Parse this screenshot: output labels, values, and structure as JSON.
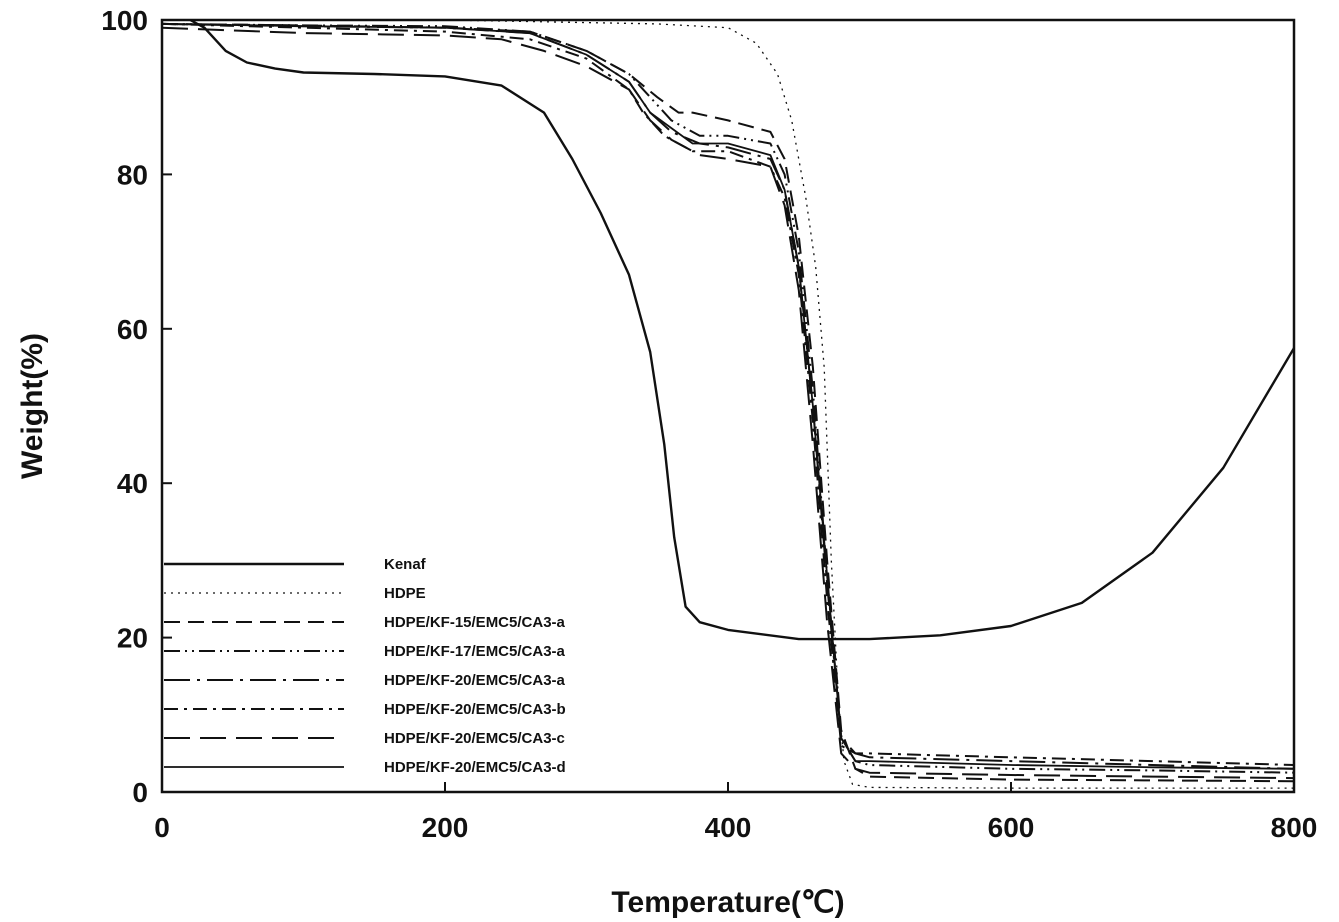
{
  "chart_data": {
    "type": "line",
    "xlabel": "Temperature(℃)",
    "ylabel": "Weight(%)",
    "xlim": [
      0,
      800
    ],
    "ylim": [
      0,
      100
    ],
    "xticks": [
      "0",
      "200",
      "400",
      "600",
      "800"
    ],
    "yticks": [
      "0",
      "20",
      "40",
      "60",
      "80",
      "100"
    ],
    "grid": false,
    "legend_position": "bottom-left",
    "series": [
      {
        "name": "Kenaf",
        "style": "solid",
        "x": [
          20,
          30,
          45,
          60,
          80,
          100,
          150,
          200,
          240,
          270,
          290,
          310,
          330,
          345,
          355,
          362,
          370,
          380,
          400,
          450,
          500,
          550,
          600,
          650,
          700,
          750,
          800
        ],
        "y": [
          100,
          99,
          96,
          94.5,
          93.7,
          93.2,
          93,
          92.7,
          91.5,
          88,
          82,
          75,
          67,
          57,
          45,
          33,
          24,
          22,
          21,
          19.8,
          19.8,
          20.3,
          21.5,
          24.5,
          31,
          42,
          57.5
        ]
      },
      {
        "name": "HDPE",
        "style": "dotted",
        "x": [
          0,
          200,
          350,
          400,
          420,
          435,
          445,
          455,
          462,
          468,
          473,
          478,
          482,
          488,
          500,
          600,
          700,
          800
        ],
        "y": [
          100,
          100,
          99.5,
          99,
          97,
          93,
          87,
          77,
          68,
          55,
          30,
          12,
          4,
          1,
          0.6,
          0.5,
          0.5,
          0.5
        ]
      },
      {
        "name": "HDPE/KF-15/EMC5/CA3-a",
        "style": "dash",
        "x": [
          0,
          100,
          200,
          260,
          300,
          330,
          350,
          365,
          375,
          400,
          430,
          440,
          450,
          460,
          470,
          480,
          490,
          500,
          600,
          700,
          800
        ],
        "y": [
          99.5,
          99.3,
          99,
          98.5,
          96,
          93,
          90,
          88,
          88,
          87,
          85.5,
          82,
          72,
          55,
          30,
          8,
          3,
          2,
          1.6,
          1.5,
          1.4
        ]
      },
      {
        "name": "HDPE/KF-17/EMC5/CA3-a",
        "style": "dash-dot-dot",
        "x": [
          0,
          100,
          200,
          260,
          300,
          330,
          345,
          360,
          380,
          400,
          430,
          440,
          450,
          460,
          470,
          480,
          490,
          500,
          600,
          700,
          800
        ],
        "y": [
          99.5,
          99.3,
          99.2,
          98.5,
          96,
          93,
          90,
          87,
          85,
          85,
          84,
          80,
          70,
          52,
          28,
          7,
          4,
          3.5,
          3,
          2.8,
          2.5
        ]
      },
      {
        "name": "HDPE/KF-20/EMC5/CA3-a",
        "style": "long-dash-dot",
        "x": [
          0,
          100,
          200,
          260,
          300,
          330,
          345,
          360,
          380,
          400,
          430,
          440,
          450,
          460,
          470,
          480,
          490,
          500,
          600,
          700,
          800
        ],
        "y": [
          99.5,
          99.2,
          99,
          98.3,
          95.5,
          92,
          88,
          85.5,
          84,
          83.5,
          82,
          78,
          68,
          50,
          27,
          7,
          5,
          4.5,
          4,
          3.5,
          3
        ]
      },
      {
        "name": "HDPE/KF-20/EMC5/CA3-b",
        "style": "dash-dot",
        "x": [
          0,
          100,
          200,
          260,
          300,
          330,
          340,
          355,
          375,
          400,
          430,
          440,
          450,
          460,
          470,
          480,
          490,
          500,
          600,
          700,
          800
        ],
        "y": [
          99.5,
          99,
          98.5,
          97.5,
          95,
          91,
          88,
          85,
          83,
          83,
          81,
          77,
          67,
          48,
          25,
          6,
          5,
          5,
          4.5,
          4,
          3.5
        ]
      },
      {
        "name": "HDPE/KF-20/EMC5/CA3-c",
        "style": "long-dash",
        "x": [
          0,
          100,
          200,
          240,
          270,
          300,
          330,
          345,
          360,
          380,
          400,
          430,
          440,
          450,
          460,
          470,
          480,
          490,
          500,
          600,
          700,
          800
        ],
        "y": [
          99,
          98.3,
          98,
          97.5,
          96,
          94,
          91,
          87,
          84.5,
          82.5,
          82,
          81,
          76,
          65,
          45,
          22,
          5,
          3,
          2.5,
          2.2,
          2,
          1.8
        ]
      },
      {
        "name": "HDPE/KF-20/EMC5/CA3-d",
        "style": "solid-thin",
        "x": [
          0,
          100,
          200,
          260,
          300,
          330,
          345,
          360,
          375,
          400,
          430,
          440,
          450,
          460,
          470,
          480,
          490,
          500,
          600,
          700,
          800
        ],
        "y": [
          99.5,
          99.2,
          99,
          98.3,
          95.5,
          92,
          88,
          86,
          84,
          84,
          82.5,
          78,
          68,
          50,
          28,
          7,
          4,
          4,
          3.5,
          3.2,
          3
        ]
      }
    ]
  }
}
